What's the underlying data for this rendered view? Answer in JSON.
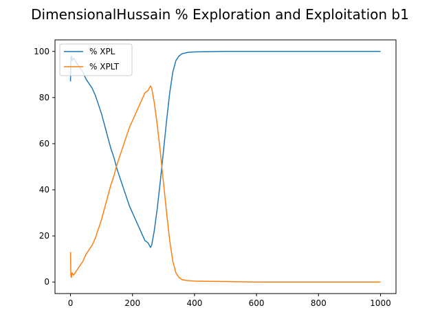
{
  "chart_data": {
    "type": "line",
    "title": "DimensionalHussain % Exploration and Exploitation b1",
    "xlabel": "",
    "ylabel": "",
    "xlim": [
      -50,
      1050
    ],
    "ylim": [
      -5,
      105
    ],
    "xticks": [
      0,
      200,
      400,
      600,
      800,
      1000
    ],
    "yticks": [
      0,
      20,
      40,
      60,
      80,
      100
    ],
    "grid": false,
    "legend_position": "top-left",
    "series": [
      {
        "name": "% XPL",
        "color": "#1f77b4",
        "points": [
          [
            0,
            87
          ],
          [
            1,
            97
          ],
          [
            3,
            98
          ],
          [
            5,
            96
          ],
          [
            10,
            97
          ],
          [
            15,
            96
          ],
          [
            20,
            95
          ],
          [
            30,
            93
          ],
          [
            40,
            91
          ],
          [
            50,
            88
          ],
          [
            60,
            86
          ],
          [
            70,
            84
          ],
          [
            80,
            81
          ],
          [
            90,
            77
          ],
          [
            100,
            73
          ],
          [
            110,
            68
          ],
          [
            120,
            63
          ],
          [
            130,
            58
          ],
          [
            140,
            54
          ],
          [
            150,
            49
          ],
          [
            160,
            45
          ],
          [
            170,
            41
          ],
          [
            180,
            37
          ],
          [
            190,
            33
          ],
          [
            200,
            30
          ],
          [
            210,
            27
          ],
          [
            220,
            24
          ],
          [
            230,
            21
          ],
          [
            240,
            18
          ],
          [
            250,
            17
          ],
          [
            258,
            15
          ],
          [
            262,
            16
          ],
          [
            270,
            22
          ],
          [
            280,
            32
          ],
          [
            290,
            44
          ],
          [
            300,
            57
          ],
          [
            310,
            70
          ],
          [
            320,
            82
          ],
          [
            330,
            91
          ],
          [
            340,
            96
          ],
          [
            350,
            98
          ],
          [
            360,
            99
          ],
          [
            380,
            99.6
          ],
          [
            400,
            99.8
          ],
          [
            450,
            99.9
          ],
          [
            500,
            100
          ],
          [
            600,
            100
          ],
          [
            700,
            100
          ],
          [
            800,
            100
          ],
          [
            900,
            100
          ],
          [
            1000,
            100
          ]
        ]
      },
      {
        "name": "% XPLT",
        "color": "#ff7f0e",
        "points": [
          [
            0,
            13
          ],
          [
            1,
            3
          ],
          [
            3,
            2
          ],
          [
            5,
            4
          ],
          [
            10,
            3
          ],
          [
            15,
            4
          ],
          [
            20,
            5
          ],
          [
            30,
            7
          ],
          [
            40,
            9
          ],
          [
            50,
            12
          ],
          [
            60,
            14
          ],
          [
            70,
            16
          ],
          [
            80,
            19
          ],
          [
            90,
            23
          ],
          [
            100,
            27
          ],
          [
            110,
            32
          ],
          [
            120,
            37
          ],
          [
            130,
            42
          ],
          [
            140,
            46
          ],
          [
            150,
            51
          ],
          [
            160,
            55
          ],
          [
            170,
            59
          ],
          [
            180,
            63
          ],
          [
            190,
            67
          ],
          [
            200,
            70
          ],
          [
            210,
            73
          ],
          [
            220,
            76
          ],
          [
            230,
            79
          ],
          [
            240,
            82
          ],
          [
            250,
            83
          ],
          [
            258,
            85
          ],
          [
            262,
            84
          ],
          [
            270,
            78
          ],
          [
            280,
            68
          ],
          [
            290,
            56
          ],
          [
            300,
            43
          ],
          [
            310,
            30
          ],
          [
            320,
            18
          ],
          [
            330,
            9
          ],
          [
            340,
            4
          ],
          [
            350,
            2
          ],
          [
            360,
            1
          ],
          [
            380,
            0.6
          ],
          [
            400,
            0.4
          ],
          [
            450,
            0.3
          ],
          [
            500,
            0.2
          ],
          [
            600,
            0
          ],
          [
            700,
            0
          ],
          [
            800,
            0
          ],
          [
            900,
            0
          ],
          [
            1000,
            0
          ]
        ]
      }
    ]
  }
}
